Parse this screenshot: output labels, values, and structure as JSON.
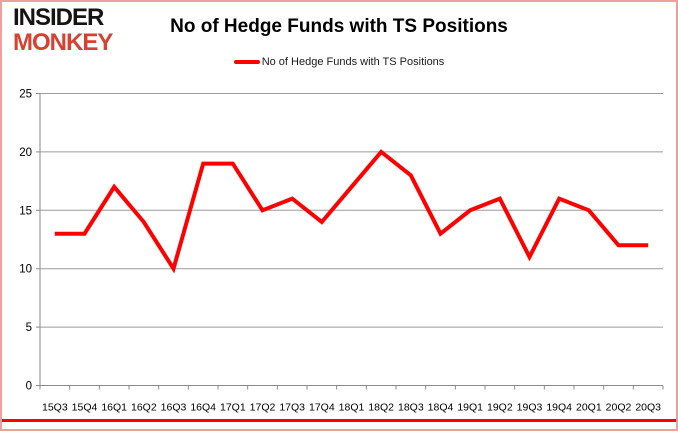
{
  "logo": {
    "line1": "INSIDER",
    "line2": "MONKEY"
  },
  "header": {
    "title": "No of Hedge Funds with TS Positions"
  },
  "legend": {
    "label": "No of Hedge Funds with TS Positions"
  },
  "colors": {
    "series_line": "#fe0000",
    "grid": "#9b9b9b",
    "axis": "#8a8a8a",
    "text": "#000000",
    "logo_accent": "#d8402f",
    "page_border": "#f0a09c",
    "bottom_strip": "#fe0000"
  },
  "chart_data": {
    "type": "line",
    "title": "No of Hedge Funds with TS Positions",
    "xlabel": "",
    "ylabel": "",
    "categories": [
      "15Q3",
      "15Q4",
      "16Q1",
      "16Q2",
      "16Q3",
      "16Q4",
      "17Q1",
      "17Q2",
      "17Q3",
      "17Q4",
      "18Q1",
      "18Q2",
      "18Q3",
      "18Q4",
      "19Q1",
      "19Q2",
      "19Q3",
      "19Q4",
      "20Q1",
      "20Q2",
      "20Q3"
    ],
    "series": [
      {
        "name": "No of Hedge Funds with TS Positions",
        "values": [
          13,
          13,
          17,
          14,
          10,
          19,
          19,
          15,
          16,
          14,
          17,
          20,
          18,
          13,
          15,
          16,
          11,
          16,
          15,
          12,
          12
        ]
      }
    ],
    "ylim": [
      0,
      25
    ],
    "ytick_step": 5,
    "grid": "horizontal",
    "legend_position": "top-center"
  }
}
